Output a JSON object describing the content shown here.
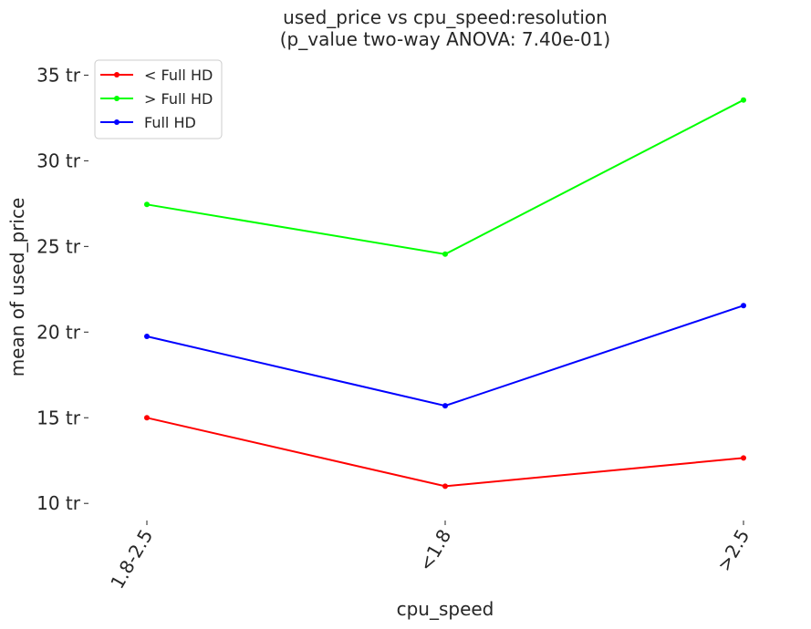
{
  "chart_data": {
    "type": "line",
    "title": "used_price vs cpu_speed:resolution",
    "subtitle": "(p_value two-way ANOVA: 7.40e-01)",
    "xlabel": "cpu_speed",
    "ylabel": "mean of used_price",
    "categories": [
      "1.8-2.5",
      "<1.8",
      ">2.5"
    ],
    "yticks": [
      10,
      15,
      20,
      25,
      30,
      35
    ],
    "ytick_labels": [
      "10 tr",
      "15 tr",
      "20 tr",
      "25 tr",
      "30 tr",
      "35 tr"
    ],
    "ylim": [
      9.0,
      36.3
    ],
    "grid": false,
    "legend_position": "top-left",
    "series": [
      {
        "name": "< Full HD",
        "color": "#ff0000",
        "values": [
          15.0,
          11.0,
          12.65
        ]
      },
      {
        "name": "> Full HD",
        "color": "#00ff00",
        "values": [
          27.45,
          24.55,
          33.55
        ]
      },
      {
        "name": "Full HD",
        "color": "#0000ff",
        "values": [
          19.75,
          15.7,
          21.55
        ]
      }
    ]
  }
}
